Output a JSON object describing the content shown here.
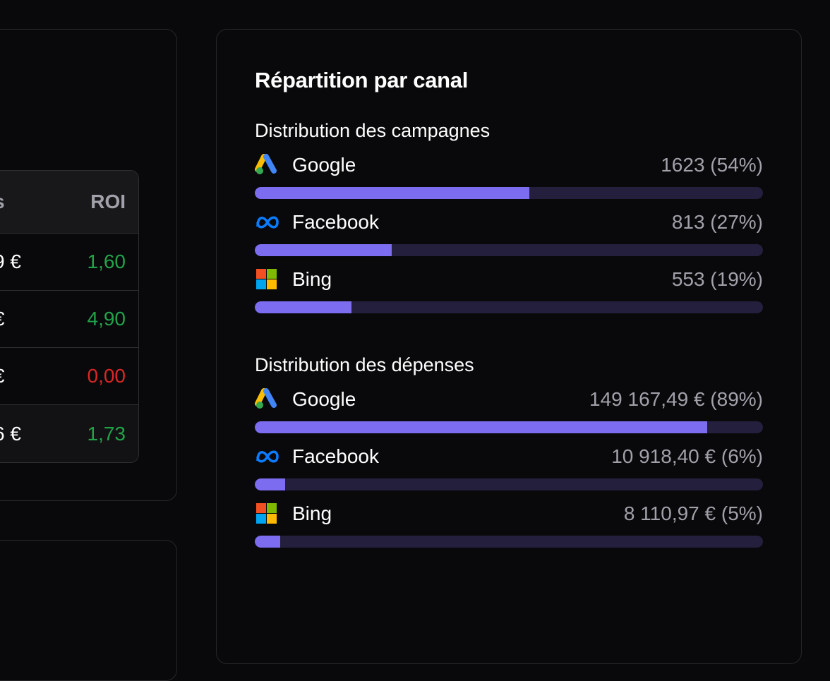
{
  "table": {
    "headers": [
      "s",
      "ROI"
    ],
    "rows": [
      {
        "amount": "9 €",
        "roi": "1,60",
        "status": "positive"
      },
      {
        "amount": "€",
        "roi": "4,90",
        "status": "positive"
      },
      {
        "amount": "€",
        "roi": "0,00",
        "status": "negative"
      },
      {
        "amount": "6 €",
        "roi": "1,73",
        "status": "positive"
      }
    ]
  },
  "panel": {
    "title": "Répartition par canal",
    "campaigns": {
      "title": "Distribution des campagnes",
      "items": [
        {
          "name": "Google",
          "icon": "google-ads-icon",
          "value": "1623 (54%)",
          "percent": 54
        },
        {
          "name": "Facebook",
          "icon": "meta-icon",
          "value": "813 (27%)",
          "percent": 27
        },
        {
          "name": "Bing",
          "icon": "microsoft-icon",
          "value": "553 (19%)",
          "percent": 19
        }
      ]
    },
    "spend": {
      "title": "Distribution des dépenses",
      "items": [
        {
          "name": "Google",
          "icon": "google-ads-icon",
          "value": "149 167,49 € (89%)",
          "percent": 89
        },
        {
          "name": "Facebook",
          "icon": "meta-icon",
          "value": "10 918,40 € (6%)",
          "percent": 6
        },
        {
          "name": "Bing",
          "icon": "microsoft-icon",
          "value": "8 110,97 € (5%)",
          "percent": 5
        }
      ]
    }
  },
  "colors": {
    "bar_fill": "#7c6cf0",
    "bar_track": "#241f3d",
    "positive": "#22a34a",
    "negative": "#dc2626"
  }
}
